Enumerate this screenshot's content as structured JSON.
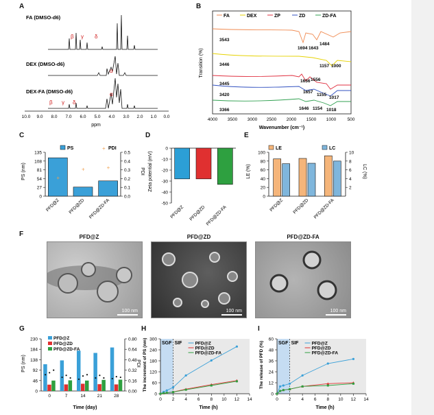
{
  "panels": {
    "A": "A",
    "B": "B",
    "C": "C",
    "D": "D",
    "E": "E",
    "F": "F",
    "G": "G",
    "H": "H",
    "I": "I"
  },
  "panel_a": {
    "spectra": [
      "FA (DMSO-d6)",
      "DEX (DMSO-d6)",
      "DEX-FA  (DMSO-d6)"
    ],
    "peak_labels_fa": [
      "β",
      "γ",
      "δ"
    ],
    "peak_label_dex": "α",
    "peak_labels_dexfa": [
      "β",
      "γ",
      "δ",
      "α"
    ],
    "xticks": [
      "10.0",
      "9.0",
      "8.0",
      "7.0",
      "6.0",
      "5.0",
      "4.0",
      "3.0",
      "2.0",
      "1.0",
      "0.0"
    ],
    "xlabel": "ppm"
  },
  "colors": {
    "ps_bar": "#3aa0d8",
    "pdi": "#f0a050",
    "d_pfdz": "#2c9fd6",
    "d_pfdzd": "#e03030",
    "d_pfdzdfa": "#2ea040",
    "le_bar": "#f5b57a",
    "lc_bar": "#7fb6dc",
    "g_pfdz": "#3aa0d8",
    "g_pfdzd": "#e03030",
    "g_pfdzdfa": "#2ea040",
    "ftir_fa": "#f08a50",
    "ftir_dex": "#e6d200",
    "ftir_zp": "#e03040",
    "ftir_zd": "#3050c0",
    "ftir_zdfa": "#30a050"
  },
  "panel_f": {
    "titles": [
      "PFD@Z",
      "PFD@ZD",
      "PFD@ZD-FA"
    ],
    "scale": "100 nm"
  },
  "chart_data": [
    {
      "id": "B",
      "type": "line",
      "title": "",
      "xlabel": "Wavenumber (cm⁻¹)",
      "ylabel": "Transition (%)",
      "xlim": [
        4000,
        500
      ],
      "xticks": [
        "4000",
        "3500",
        "3000",
        "2500",
        "2000",
        "1500",
        "1000",
        "500"
      ],
      "series_names": [
        "FA",
        "DEX",
        "ZP",
        "ZD",
        "ZD-FA"
      ],
      "peak_annotations": [
        "3543",
        "1694",
        "1643",
        "1484",
        "3446",
        "1157",
        "1000",
        "3445",
        "1656",
        "1556",
        "1657",
        "1155",
        "1017",
        "3420",
        "3366",
        "1646",
        "1154",
        "1018"
      ]
    },
    {
      "id": "C",
      "type": "bar",
      "categories": [
        "PFD@Z",
        "PFD@ZD",
        "PFD@ZD-FA"
      ],
      "series": [
        {
          "name": "PS",
          "values": [
            118,
            28,
            47
          ]
        },
        {
          "name": "PDI",
          "values": [
            0.21,
            0.31,
            0.33
          ]
        }
      ],
      "ylabel": "PS (nm)",
      "y2label": "PDI",
      "ylim": [
        0,
        135
      ],
      "y2lim": [
        0,
        0.5
      ],
      "yticks": [
        "0",
        "27",
        "54",
        "81",
        "108",
        "135"
      ],
      "y2ticks": [
        "0.0",
        "0.1",
        "0.2",
        "0.3",
        "0.4",
        "0.5"
      ]
    },
    {
      "id": "D",
      "type": "bar",
      "categories": [
        "PFD@Z",
        "PFD@ZD",
        "PFD@ZD-FA"
      ],
      "values": [
        -28,
        -28,
        -33
      ],
      "ylabel": "Zeta potential (mV)",
      "ylim": [
        -50,
        0
      ],
      "yticks": [
        "0",
        "-10",
        "-20",
        "-30",
        "-40",
        "-50"
      ]
    },
    {
      "id": "E",
      "type": "bar",
      "categories": [
        "PFD@Z",
        "PFD@ZD",
        "PFD@ZD-FA"
      ],
      "series": [
        {
          "name": "LE",
          "values": [
            85,
            86,
            92
          ]
        },
        {
          "name": "LC",
          "values": [
            7.4,
            7.5,
            8.0
          ]
        }
      ],
      "ylabel": "LE (%)",
      "y2label": "LC (%)",
      "ylim": [
        0,
        100
      ],
      "y2lim": [
        0,
        10
      ],
      "yticks": [
        "0",
        "20",
        "40",
        "60",
        "80",
        "100"
      ],
      "y2ticks": [
        "2",
        "4",
        "6",
        "8",
        "10"
      ]
    },
    {
      "id": "G",
      "type": "bar",
      "categories": [
        "0",
        "7",
        "14",
        "21",
        "28"
      ],
      "series": [
        {
          "name": "PFD@Z",
          "values": [
            118,
            135,
            178,
            168,
            192
          ]
        },
        {
          "name": "PFD@ZD",
          "values": [
            28,
            29,
            32,
            30,
            29
          ]
        },
        {
          "name": "PFD@ZD-FA",
          "values": [
            46,
            47,
            46,
            49,
            50
          ]
        }
      ],
      "pdi": [
        [
          0.25,
          0.21,
          0.18,
          0.2,
          0.19
        ],
        [
          0.28,
          0.24,
          0.23,
          0.24,
          0.22
        ],
        [
          0.32,
          0.2,
          0.25,
          0.2,
          0.21
        ]
      ],
      "xlabel": "Time (day)",
      "ylabel": "PS (nm)",
      "y2label": "PDI",
      "ylim": [
        0,
        230
      ],
      "y2lim": [
        0,
        0.8
      ],
      "yticks": [
        "0",
        "46",
        "92",
        "138",
        "184",
        "230"
      ],
      "y2ticks": [
        "0.00",
        "0.16",
        "0.32",
        "0.48",
        "0.64",
        "0.80"
      ]
    },
    {
      "id": "H",
      "type": "line",
      "x": [
        0,
        0.5,
        1,
        2,
        4,
        8,
        12
      ],
      "series": [
        {
          "name": "PFD@Z",
          "values": [
            0,
            10,
            18,
            35,
            100,
            182,
            258
          ]
        },
        {
          "name": "PFD@ZD",
          "values": [
            0,
            3,
            5,
            10,
            25,
            50,
            72
          ]
        },
        {
          "name": "PFD@ZD-FA",
          "values": [
            0,
            3,
            5,
            9,
            22,
            45,
            68
          ]
        }
      ],
      "xlabel": "Time (h)",
      "ylabel": "The increment of PS (nm)",
      "xlim": [
        0,
        14
      ],
      "ylim": [
        0,
        300
      ],
      "xticks": [
        "0",
        "2",
        "4",
        "6",
        "8",
        "10",
        "12",
        "14"
      ],
      "yticks": [
        "0",
        "60",
        "120",
        "180",
        "240",
        "300"
      ],
      "phases": [
        "SGF",
        "SIF"
      ]
    },
    {
      "id": "I",
      "type": "line",
      "x": [
        0,
        0.5,
        1,
        2,
        4,
        8,
        12
      ],
      "series": [
        {
          "name": "PFD@Z",
          "values": [
            0,
            8,
            9,
            11,
            20,
            33,
            38
          ]
        },
        {
          "name": "PFD@ZD",
          "values": [
            0,
            3,
            4,
            5,
            8,
            11,
            12
          ]
        },
        {
          "name": "PFD@ZD-FA",
          "values": [
            0,
            3,
            4,
            5,
            8,
            9,
            11
          ]
        }
      ],
      "xlabel": "Time (h)",
      "ylabel": "The release of PFD (%)",
      "xlim": [
        0,
        14
      ],
      "ylim": [
        0,
        60
      ],
      "xticks": [
        "0",
        "2",
        "4",
        "6",
        "8",
        "10",
        "12",
        "14"
      ],
      "yticks": [
        "0",
        "12",
        "24",
        "36",
        "48",
        "60"
      ],
      "phases": [
        "SGF",
        "SIF"
      ]
    }
  ]
}
